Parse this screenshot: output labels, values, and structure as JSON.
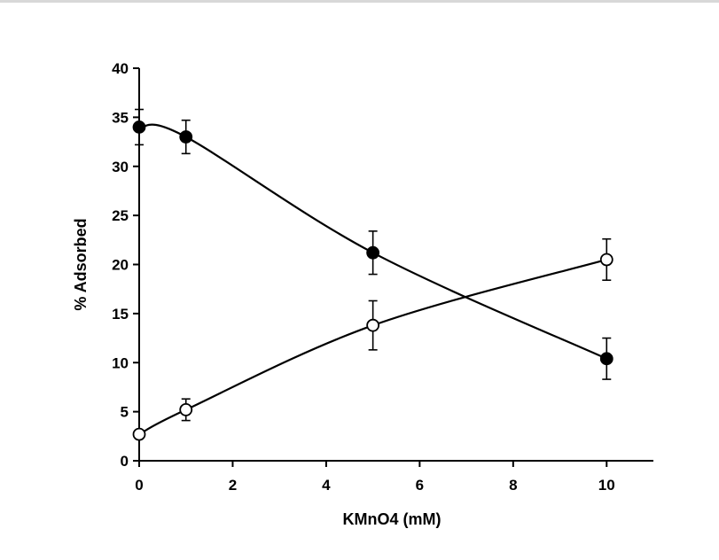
{
  "chart_data": {
    "type": "line",
    "title": "",
    "xlabel": "KMnO4 (mM)",
    "ylabel": "% Adsorbed",
    "xlim": [
      0,
      11
    ],
    "ylim": [
      0,
      40
    ],
    "xticks": [
      0,
      2,
      4,
      6,
      8,
      10
    ],
    "yticks": [
      0,
      5,
      10,
      15,
      20,
      25,
      30,
      35,
      40
    ],
    "grid": false,
    "legend": "none",
    "series": [
      {
        "name": "filled-circles",
        "marker": "filled",
        "x": [
          0,
          1,
          5,
          10
        ],
        "y": [
          34.0,
          33.0,
          21.2,
          10.4
        ],
        "error": [
          1.8,
          1.7,
          2.2,
          2.1
        ]
      },
      {
        "name": "open-circles",
        "marker": "open",
        "x": [
          0,
          1,
          5,
          10
        ],
        "y": [
          2.7,
          5.2,
          13.8,
          20.5
        ],
        "error": [
          0,
          1.1,
          2.5,
          2.1
        ]
      }
    ]
  }
}
